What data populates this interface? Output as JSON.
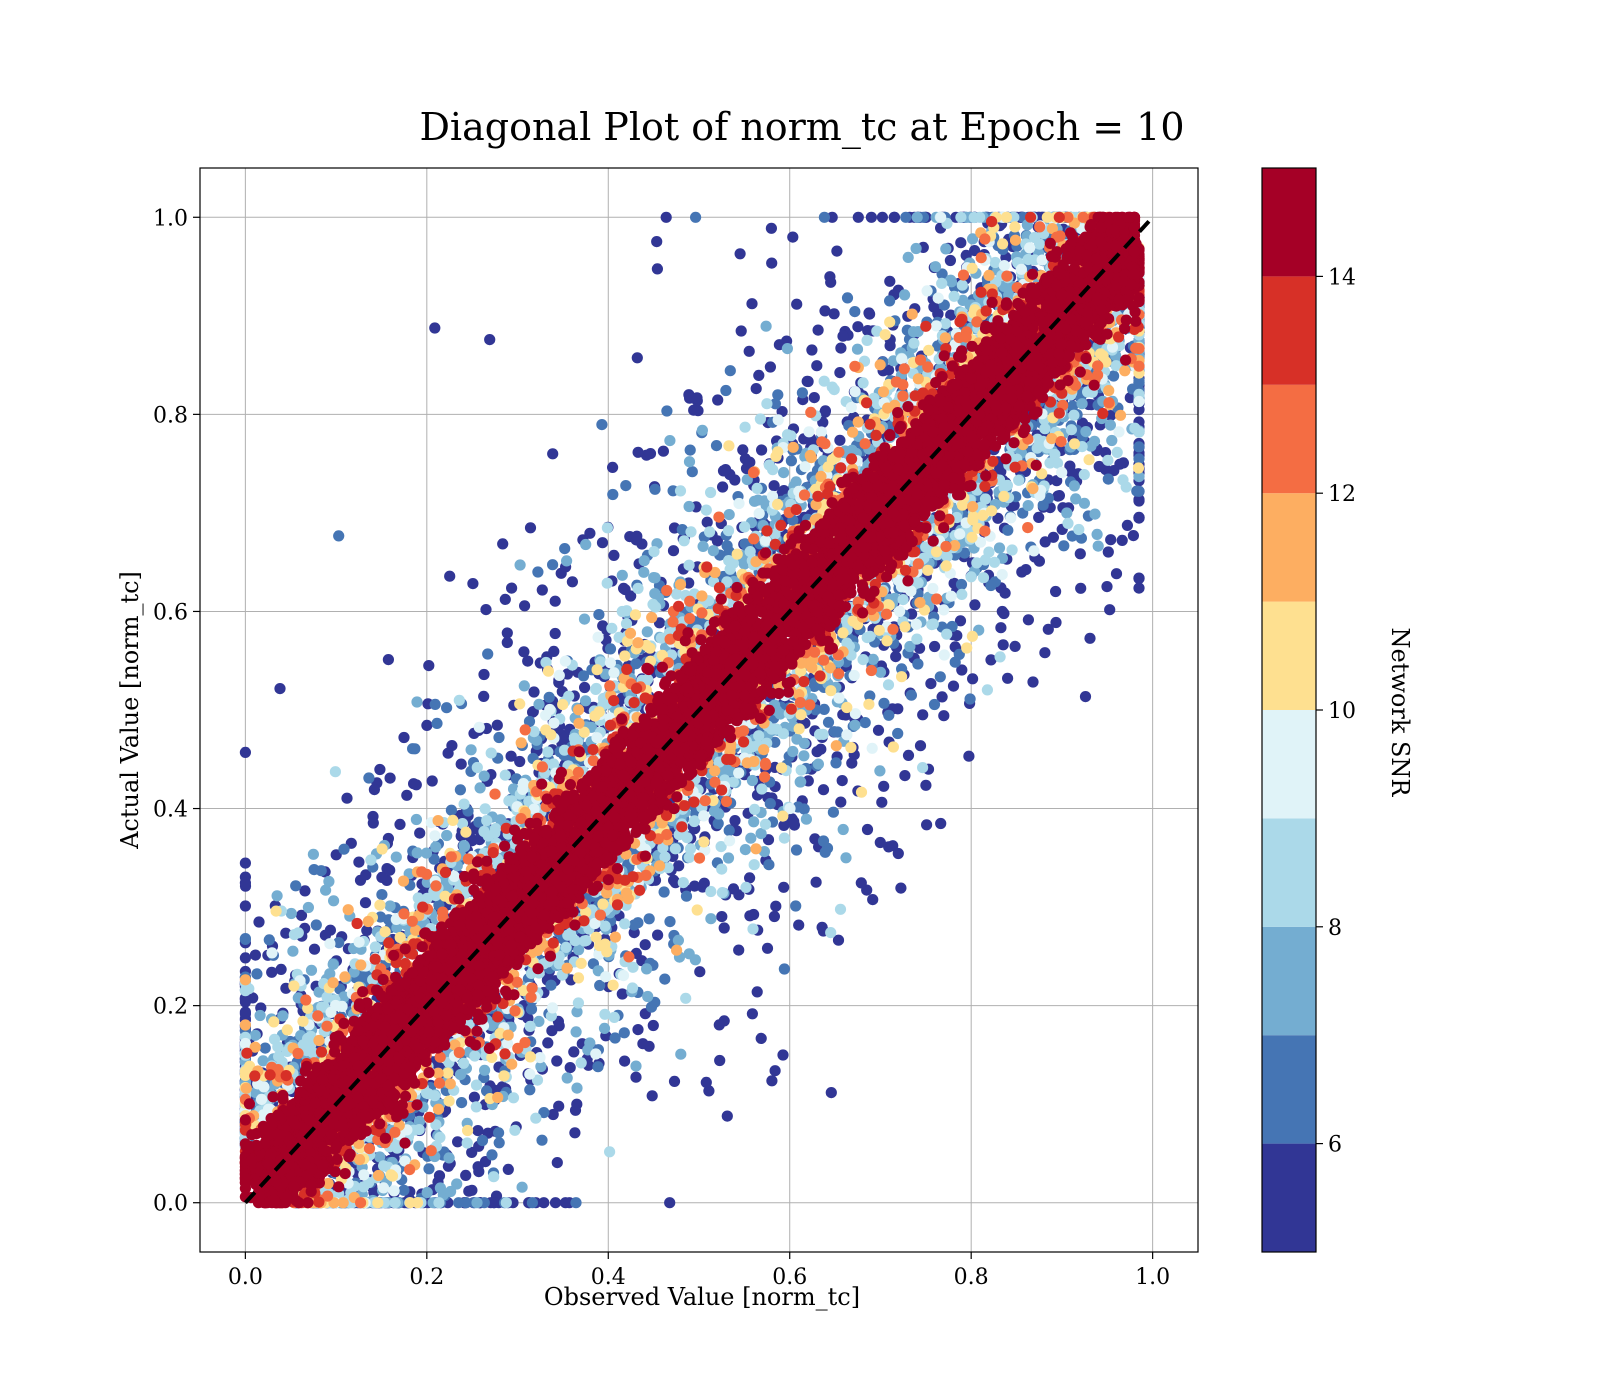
{
  "chart_data": {
    "type": "scatter",
    "title": "Diagonal Plot of norm_tc at Epoch = 10",
    "xlabel": "Observed Value [norm_tc]",
    "ylabel": "Actual Value [norm_tc]",
    "xlim": [
      -0.05,
      1.05
    ],
    "ylim": [
      -0.05,
      1.05
    ],
    "x_ticks": [
      "0.0",
      "0.2",
      "0.4",
      "0.6",
      "0.8",
      "1.0"
    ],
    "y_ticks": [
      "0.0",
      "0.2",
      "0.4",
      "0.6",
      "0.8",
      "1.0"
    ],
    "grid": true,
    "reference_line": {
      "style": "dashed",
      "color": "#000000",
      "from": [
        0.0,
        0.0
      ],
      "to": [
        1.0,
        1.0
      ]
    },
    "colorbar": {
      "label": "Network SNR",
      "range": [
        5,
        15
      ],
      "ticks": [
        "6",
        "8",
        "10",
        "12",
        "14"
      ],
      "tick_values": [
        6,
        8,
        10,
        12,
        14
      ],
      "levels": [
        {
          "from": 5,
          "to": 6,
          "color": "#313695"
        },
        {
          "from": 6,
          "to": 7,
          "color": "#4575b4"
        },
        {
          "from": 7,
          "to": 8,
          "color": "#74add1"
        },
        {
          "from": 8,
          "to": 9,
          "color": "#abd9e9"
        },
        {
          "from": 9,
          "to": 10,
          "color": "#e0f3f8"
        },
        {
          "from": 10,
          "to": 11,
          "color": "#fee090"
        },
        {
          "from": 11,
          "to": 12,
          "color": "#fdae61"
        },
        {
          "from": 12,
          "to": 13,
          "color": "#f46d43"
        },
        {
          "from": 13,
          "to": 14,
          "color": "#d73027"
        },
        {
          "from": 14,
          "to": 15,
          "color": "#a50026"
        }
      ]
    },
    "description_of_distribution": {
      "high_snr_band_color": "#a50026",
      "band_center": "y = x",
      "scatter_increases_with_lower_snr": true
    }
  }
}
